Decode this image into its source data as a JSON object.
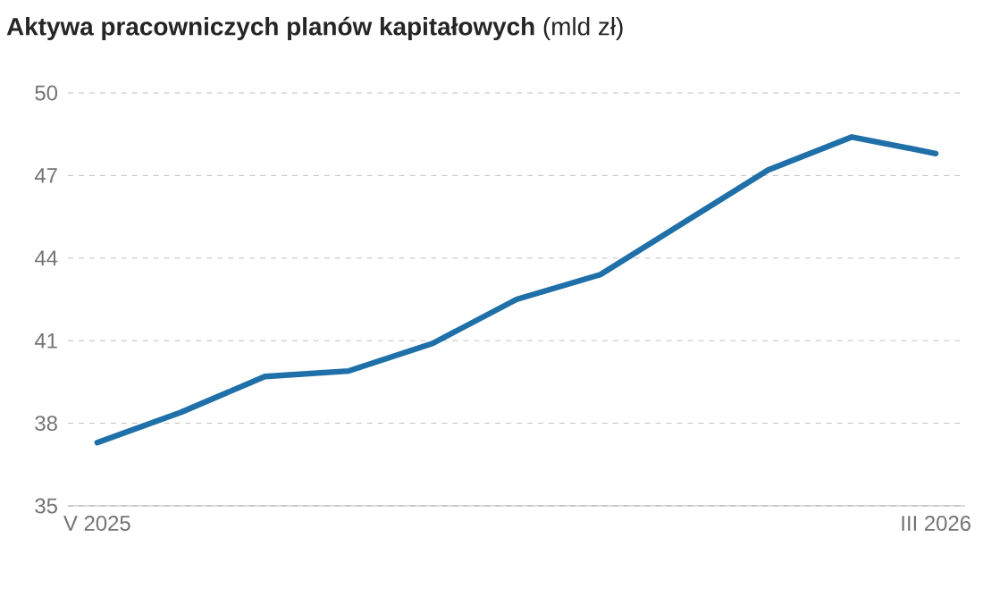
{
  "chart_data": {
    "type": "line",
    "title": "**Aktywa pracowniczych planów kapitałowych** (mld zł)",
    "categories": [
      "V 2025",
      null,
      null,
      null,
      null,
      null,
      null,
      null,
      null,
      null,
      "III 2026"
    ],
    "series": [
      {
        "color": "#1f6fa8",
        "values": [
          37.3,
          38.4,
          39.7,
          39.9,
          40.9,
          42.5,
          43.4,
          45.3,
          47.2,
          48.4,
          47.8
        ]
      }
    ],
    "ylim": [
      35,
      50
    ],
    "yticks": [
      35,
      38,
      41,
      44,
      47,
      50
    ],
    "grid": "y",
    "marker": "none",
    "line_style": "solid"
  }
}
